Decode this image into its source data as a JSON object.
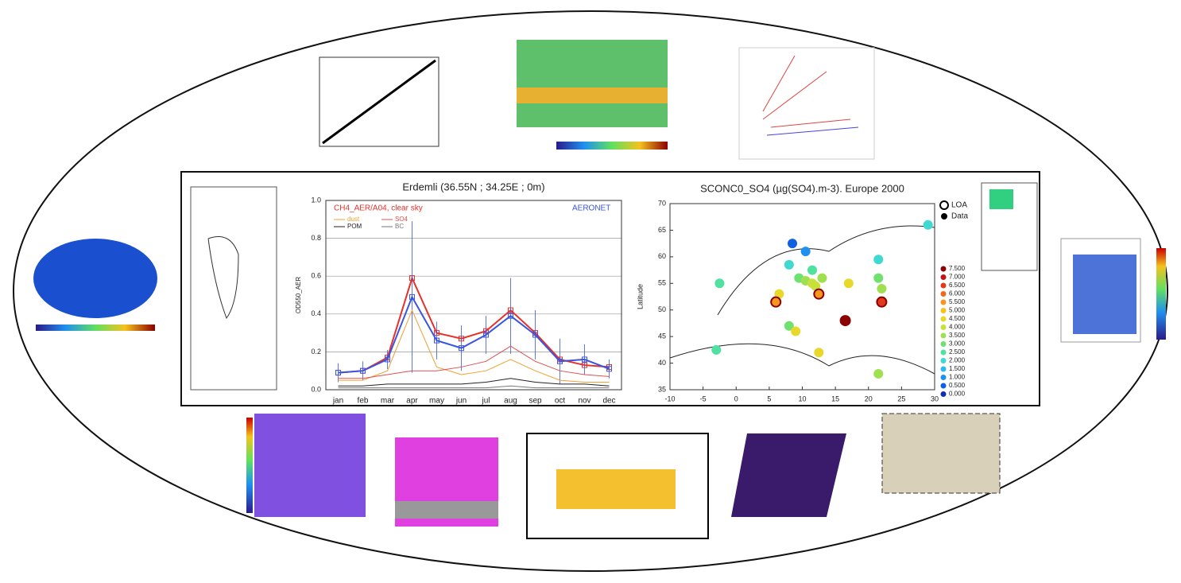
{
  "chart_data": [
    {
      "type": "line",
      "title": "Erdemli (36.55N ; 34.25E ; 0m)",
      "y_label": "OD550_AER",
      "categories": [
        "jan",
        "feb",
        "mar",
        "apr",
        "may",
        "jun",
        "jul",
        "aug",
        "sep",
        "oct",
        "nov",
        "dec"
      ],
      "ylim": [
        0,
        1
      ],
      "yticks": [
        {
          "value": 0,
          "label": "0.0"
        },
        {
          "value": 0.2,
          "label": "0.2"
        },
        {
          "value": 0.4,
          "label": "0.4"
        },
        {
          "value": 0.6,
          "label": "0.6"
        },
        {
          "value": 0.8,
          "label": "0.8"
        },
        {
          "value": 1,
          "label": "1.0"
        }
      ],
      "grid": true,
      "series": [
        {
          "name": "CH4_AER/A04, clear sky",
          "color": "#e8302a",
          "values": [
            0.09,
            0.1,
            0.17,
            0.59,
            0.3,
            0.27,
            0.31,
            0.42,
            0.3,
            0.16,
            0.13,
            0.12
          ]
        },
        {
          "name": "AERONET",
          "color": "#3a55e0",
          "values": [
            0.09,
            0.1,
            0.16,
            0.49,
            0.26,
            0.22,
            0.29,
            0.39,
            0.29,
            0.15,
            0.16,
            0.11
          ],
          "errors": [
            0.05,
            0.05,
            0.05,
            0.4,
            0.1,
            0.12,
            0.1,
            0.2,
            0.13,
            0.12,
            0.08,
            0.05
          ]
        },
        {
          "name": "dust",
          "color": "#f0a030",
          "values": [
            0.05,
            0.05,
            0.1,
            0.42,
            0.12,
            0.08,
            0.1,
            0.16,
            0.1,
            0.05,
            0.04,
            0.04
          ]
        },
        {
          "name": "SO4",
          "color": "#e05050",
          "values": [
            0.06,
            0.06,
            0.08,
            0.1,
            0.1,
            0.12,
            0.15,
            0.23,
            0.15,
            0.1,
            0.08,
            0.07
          ]
        },
        {
          "name": "POM",
          "color": "#222222",
          "values": [
            0.02,
            0.02,
            0.03,
            0.03,
            0.03,
            0.03,
            0.04,
            0.06,
            0.04,
            0.03,
            0.03,
            0.02
          ]
        },
        {
          "name": "BC",
          "color": "#777777",
          "values": [
            0.01,
            0.01,
            0.01,
            0.01,
            0.01,
            0.01,
            0.01,
            0.02,
            0.01,
            0.01,
            0.01,
            0.01
          ]
        }
      ]
    },
    {
      "type": "scatter",
      "title": "SCONC0_SO4 (µg(SO4).m-3). Europe 2000",
      "y_label": "Latitude",
      "xlim": [
        -10,
        30
      ],
      "xticks": [
        -10,
        -5,
        0,
        5,
        10,
        15,
        20,
        25,
        30
      ],
      "ylim": [
        35,
        70
      ],
      "yticks": [
        35,
        40,
        45,
        50,
        55,
        60,
        65,
        70
      ],
      "legend": [
        "LOA",
        "Data"
      ],
      "scale": [
        {
          "value": 7.5,
          "label": "7.500",
          "color": "#8b0000"
        },
        {
          "value": 7,
          "label": "7.000",
          "color": "#c0141a"
        },
        {
          "value": 6.5,
          "label": "6.500",
          "color": "#e03a1a"
        },
        {
          "value": 6,
          "label": "6.000",
          "color": "#f06a1a"
        },
        {
          "value": 5.5,
          "label": "5.500",
          "color": "#f5961e"
        },
        {
          "value": 5,
          "label": "5.000",
          "color": "#f5c21e"
        },
        {
          "value": 4.5,
          "label": "4.500",
          "color": "#e8d82a"
        },
        {
          "value": 4,
          "label": "4.000",
          "color": "#c8e03a"
        },
        {
          "value": 3.5,
          "label": "3.500",
          "color": "#a0e050"
        },
        {
          "value": 3,
          "label": "3.000",
          "color": "#70e070"
        },
        {
          "value": 2.5,
          "label": "2.500",
          "color": "#50e0a0"
        },
        {
          "value": 2,
          "label": "2.000",
          "color": "#40d8d0"
        },
        {
          "value": 1.5,
          "label": "1.500",
          "color": "#30b8f0"
        },
        {
          "value": 1,
          "label": "1.000",
          "color": "#2090f0"
        },
        {
          "value": 0.5,
          "label": "0.500",
          "color": "#1060e0"
        },
        {
          "value": 0,
          "label": "0.000",
          "color": "#1030b0"
        }
      ],
      "x": [
        29,
        8.5,
        10.5,
        8,
        11.5,
        21.5,
        -2.5,
        9.5,
        10.5,
        11.5,
        13,
        12,
        17,
        21.5,
        22,
        6.5,
        6,
        12.5,
        22,
        16.5,
        8,
        9,
        -3,
        12.5,
        21.5
      ],
      "y": [
        66,
        62.5,
        61,
        58.5,
        57.5,
        59.5,
        55,
        56,
        55.5,
        55,
        56,
        54.5,
        55,
        56,
        54,
        53,
        51.5,
        53,
        51.5,
        48,
        47,
        46,
        42.5,
        42,
        38
      ],
      "values": [
        2,
        0.5,
        1,
        2,
        2.5,
        2,
        2.5,
        3,
        3.5,
        4,
        3.5,
        4,
        4.5,
        3,
        3.5,
        4.5,
        5.5,
        5.5,
        6.5,
        7.5,
        3,
        4.5,
        2.5,
        4.5,
        3.5
      ]
    }
  ]
}
